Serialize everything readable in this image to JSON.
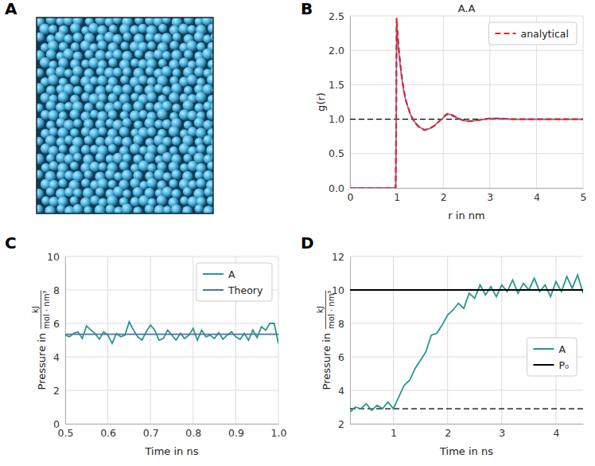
{
  "chart_data": [
    {
      "type": "image",
      "panel": "A"
    },
    {
      "type": "line",
      "panel": "B",
      "title": "A.A",
      "xlabel": "r in nm",
      "ylabel": "g(r)",
      "xlim": [
        0,
        5
      ],
      "xticks": [
        0,
        1,
        2,
        3,
        4,
        5
      ],
      "ylim": [
        0,
        2.5
      ],
      "yticks": [
        {
          "value": 0,
          "label": "0.0"
        },
        0.5,
        {
          "value": 1,
          "label": "1.0"
        },
        1.5,
        {
          "value": 2,
          "label": "2.0"
        },
        2.5
      ],
      "grid": true,
      "legend": "upper right",
      "reference_lines": [
        {
          "value": 1,
          "color": "#000000",
          "line_style": "dashed"
        }
      ],
      "series": [
        {
          "color": "#6a78c4",
          "line_style": "solid",
          "x": [
            0,
            0.5,
            0.9,
            0.96,
            0.98,
            0.99,
            1.0,
            1.02,
            1.05,
            1.1,
            1.15,
            1.2,
            1.3,
            1.4,
            1.5,
            1.6,
            1.7,
            1.8,
            1.9,
            2.0,
            2.05,
            2.1,
            2.15,
            2.2,
            2.3,
            2.4,
            2.5,
            2.6,
            2.8,
            3.0,
            3.2,
            3.5,
            4.0,
            4.5,
            5.0
          ],
          "values": [
            0,
            0,
            0,
            0,
            0.05,
            0.9,
            2.38,
            2.2,
            1.95,
            1.65,
            1.42,
            1.26,
            1.06,
            0.95,
            0.88,
            0.85,
            0.86,
            0.9,
            0.96,
            1.02,
            1.05,
            1.07,
            1.07,
            1.06,
            1.02,
            0.99,
            0.97,
            0.97,
            0.99,
            1.01,
            1.01,
            1.0,
            1.0,
            1.0,
            1.0
          ]
        },
        {
          "name": "analytical",
          "color": "#e8251f",
          "line_style": "dashed",
          "x": [
            0,
            0.5,
            0.9,
            0.96,
            0.98,
            0.99,
            1.0,
            1.02,
            1.05,
            1.1,
            1.15,
            1.2,
            1.3,
            1.4,
            1.5,
            1.6,
            1.7,
            1.8,
            1.9,
            2.0,
            2.05,
            2.1,
            2.15,
            2.2,
            2.3,
            2.4,
            2.5,
            2.6,
            2.8,
            3.0,
            3.2,
            3.5,
            4.0,
            4.5,
            5.0
          ],
          "values": [
            0,
            0,
            0,
            0,
            0,
            0.8,
            2.47,
            2.27,
            2.0,
            1.68,
            1.44,
            1.27,
            1.06,
            0.94,
            0.87,
            0.84,
            0.86,
            0.9,
            0.96,
            1.03,
            1.06,
            1.08,
            1.07,
            1.05,
            1.02,
            0.99,
            0.97,
            0.97,
            0.99,
            1.01,
            1.01,
            1.0,
            1.0,
            1.0,
            1.0
          ]
        }
      ]
    },
    {
      "type": "line",
      "panel": "C",
      "xlabel": "Time in ns",
      "ylabel": "Pressure in",
      "ylabel_unit": {
        "numerator": "kJ",
        "denominator": "mol · nm³"
      },
      "xlim": [
        0.5,
        1.0
      ],
      "xticks": [
        0.5,
        0.6,
        0.7,
        0.8,
        0.9,
        {
          "value": 1.0,
          "label": "1.0"
        }
      ],
      "ylim": [
        0,
        10
      ],
      "yticks": [
        0,
        2,
        4,
        6,
        8,
        10
      ],
      "grid": true,
      "legend": "upper right",
      "series": [
        {
          "name": "A",
          "color": "#2a9690",
          "line_style": "solid",
          "x": [
            0.5,
            0.51,
            0.52,
            0.53,
            0.54,
            0.55,
            0.56,
            0.57,
            0.58,
            0.59,
            0.6,
            0.61,
            0.62,
            0.63,
            0.64,
            0.65,
            0.66,
            0.67,
            0.68,
            0.69,
            0.7,
            0.71,
            0.72,
            0.73,
            0.74,
            0.75,
            0.76,
            0.77,
            0.78,
            0.79,
            0.8,
            0.81,
            0.82,
            0.83,
            0.84,
            0.85,
            0.86,
            0.87,
            0.88,
            0.89,
            0.9,
            0.91,
            0.92,
            0.93,
            0.94,
            0.95,
            0.96,
            0.97,
            0.98,
            0.99,
            1.0
          ],
          "values": [
            5.3,
            5.2,
            5.4,
            5.5,
            5.1,
            5.85,
            5.6,
            5.4,
            5.05,
            5.5,
            5.3,
            4.8,
            5.4,
            5.2,
            5.3,
            6.1,
            5.6,
            5.2,
            5.0,
            5.5,
            5.9,
            5.6,
            5.0,
            5.1,
            5.6,
            5.3,
            5.0,
            5.4,
            5.1,
            5.3,
            5.7,
            5.0,
            5.6,
            5.2,
            5.3,
            5.1,
            5.45,
            5.05,
            5.3,
            5.5,
            5.2,
            5.05,
            5.4,
            5.0,
            5.6,
            5.15,
            5.8,
            5.6,
            6.0,
            6.0,
            4.8
          ]
        },
        {
          "name": "Theory",
          "color": "#4c72b0",
          "line_style": "solid",
          "x": [
            0.5,
            1.0
          ],
          "values": [
            5.35,
            5.35
          ]
        }
      ]
    },
    {
      "type": "line",
      "panel": "D",
      "xlabel": "Time in ns",
      "ylabel": "Pressure in",
      "ylabel_unit": {
        "numerator": "kJ",
        "denominator": "mol · nm³"
      },
      "xlim": [
        0.2,
        4.5
      ],
      "xticks": [
        1,
        2,
        3,
        4
      ],
      "ylim": [
        2,
        12
      ],
      "yticks": [
        2,
        4,
        6,
        8,
        10,
        12
      ],
      "grid": true,
      "legend": "center right",
      "reference_lines": [
        {
          "value": 2.9,
          "color": "#000000",
          "line_style": "dashed"
        }
      ],
      "series": [
        {
          "name": "A",
          "color": "#2a9690",
          "line_style": "solid",
          "x": [
            0.2,
            0.3,
            0.4,
            0.5,
            0.6,
            0.7,
            0.8,
            0.9,
            1.0,
            1.1,
            1.2,
            1.3,
            1.4,
            1.5,
            1.6,
            1.7,
            1.8,
            1.9,
            2.0,
            2.1,
            2.2,
            2.3,
            2.4,
            2.5,
            2.6,
            2.7,
            2.8,
            2.9,
            3.0,
            3.1,
            3.2,
            3.3,
            3.4,
            3.5,
            3.6,
            3.7,
            3.8,
            3.9,
            4.0,
            4.1,
            4.2,
            4.3,
            4.4,
            4.5
          ],
          "values": [
            2.7,
            3.0,
            2.9,
            3.2,
            2.8,
            3.1,
            2.9,
            3.3,
            2.9,
            3.6,
            4.3,
            4.6,
            5.3,
            5.8,
            6.3,
            7.3,
            7.4,
            7.9,
            8.5,
            8.8,
            9.2,
            8.9,
            9.8,
            9.5,
            10.3,
            9.7,
            10.2,
            9.6,
            10.3,
            9.9,
            10.6,
            9.8,
            10.4,
            10.0,
            10.7,
            9.9,
            10.3,
            9.6,
            10.5,
            9.9,
            10.8,
            10.1,
            10.9,
            9.8
          ]
        },
        {
          "name": "P₀",
          "color": "#000000",
          "line_style": "solid",
          "x": [
            0.2,
            4.5
          ],
          "values": [
            10,
            10
          ]
        }
      ]
    }
  ]
}
